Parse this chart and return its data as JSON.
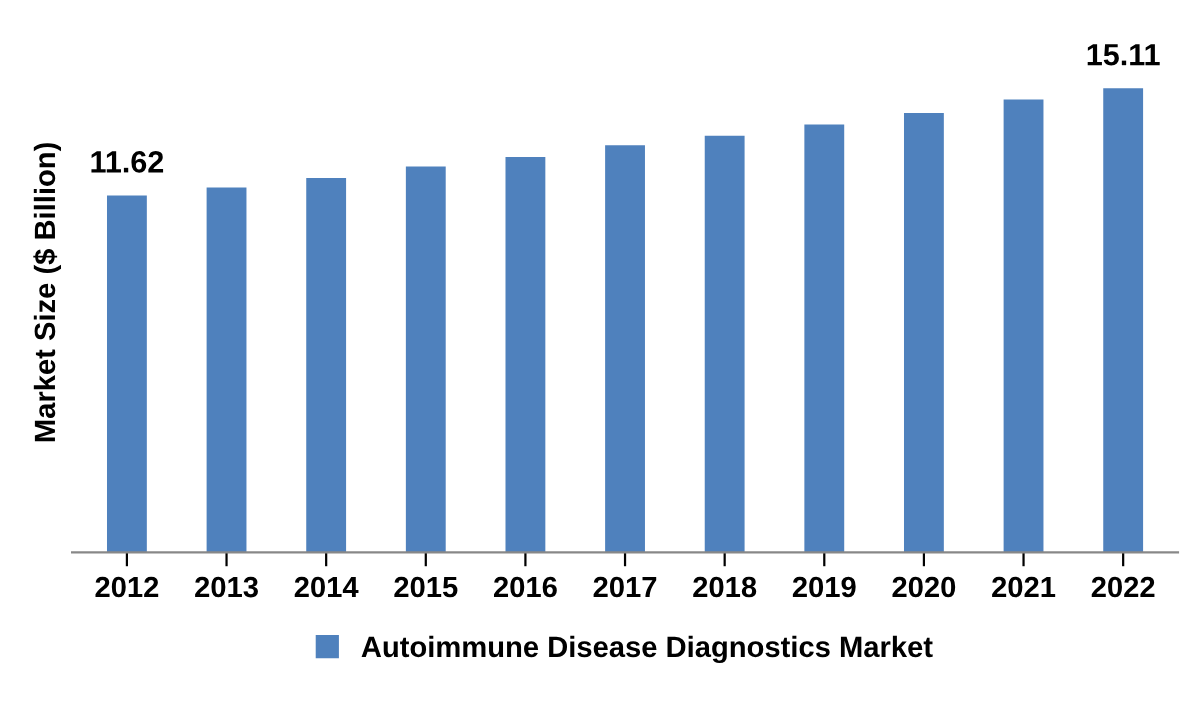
{
  "chart_data": {
    "type": "bar",
    "ylabel": "Market Size ($ Billion)",
    "categories": [
      "2012",
      "2013",
      "2014",
      "2015",
      "2016",
      "2017",
      "2018",
      "2019",
      "2020",
      "2021",
      "2022"
    ],
    "series": [
      {
        "name": "Autoimmune Disease Diagnostics Market",
        "color": "#4f81bd",
        "values": [
          11.62,
          11.88,
          12.19,
          12.56,
          12.87,
          13.25,
          13.56,
          13.93,
          14.3,
          14.74,
          15.11
        ],
        "value_labels": [
          "11.62",
          null,
          null,
          null,
          null,
          null,
          null,
          null,
          null,
          null,
          "15.11"
        ]
      }
    ],
    "legend": "bottom",
    "grid": false
  }
}
